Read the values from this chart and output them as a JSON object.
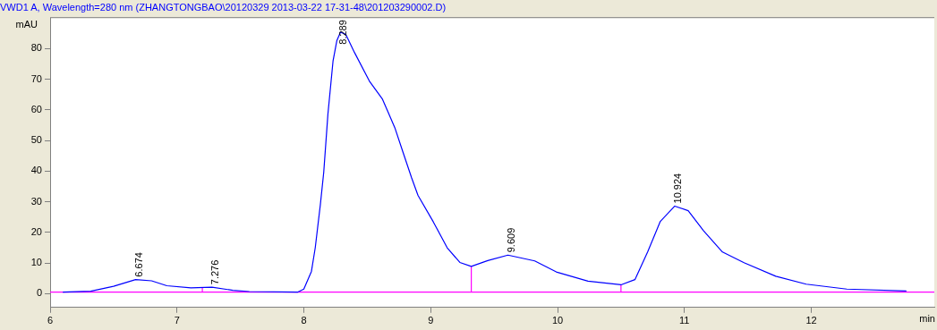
{
  "chart_data": {
    "type": "line",
    "title": "VWD1 A, Wavelength=280 nm (ZHANGTONGBAO\\20120329 2013-03-22 17-31-48\\201203290002.D)",
    "xlabel": "min",
    "ylabel": "mAU",
    "xlim": [
      6,
      12.97
    ],
    "ylim": [
      -4.5,
      90
    ],
    "xticks": [
      6,
      7,
      8,
      9,
      10,
      11,
      12
    ],
    "yticks": [
      0,
      10,
      20,
      30,
      40,
      50,
      60,
      70,
      80
    ],
    "grid": false,
    "legend": false,
    "marker": "none",
    "line_style": "solid",
    "series": [
      {
        "color": "#0000ff",
        "x": [
          6.1,
          6.32,
          6.5,
          6.674,
          6.8,
          6.92,
          7.11,
          7.276,
          7.44,
          7.57,
          7.95,
          8.0,
          8.06,
          8.09,
          8.13,
          8.157,
          8.19,
          8.23,
          8.26,
          8.289,
          8.33,
          8.4,
          8.52,
          8.62,
          8.66,
          8.72,
          8.78,
          8.85,
          8.9,
          9.02,
          9.13,
          9.23,
          9.32,
          9.45,
          9.609,
          9.82,
          9.99,
          10.24,
          10.5,
          10.61,
          10.71,
          10.81,
          10.924,
          11.03,
          11.15,
          11.3,
          11.47,
          11.72,
          11.96,
          12.28,
          12.75
        ],
        "values": [
          0.5,
          0.8,
          2.4,
          4.6,
          4.2,
          2.6,
          1.9,
          2.1,
          1.1,
          0.7,
          0.5,
          1.5,
          7.3,
          15,
          29,
          39.7,
          58.7,
          75.9,
          82.6,
          85.4,
          84.7,
          78.7,
          69.2,
          63.5,
          59.7,
          53.9,
          46.4,
          37.8,
          32.1,
          23.5,
          15,
          10.2,
          8.9,
          10.8,
          12.6,
          10.7,
          7.1,
          4.1,
          2.9,
          4.6,
          13.6,
          23.6,
          28.6,
          27.1,
          20.6,
          13.6,
          10.1,
          5.7,
          3.1,
          1.5,
          0.9
        ]
      },
      {
        "color": "#ff00ff",
        "x": [
          6,
          12.97
        ],
        "values": [
          0.5,
          0.5
        ]
      },
      {
        "color": "#ff00ff",
        "x": [
          7.2,
          7.2
        ],
        "values": [
          0.5,
          2
        ]
      },
      {
        "color": "#ff00ff",
        "x": [
          9.32,
          9.32
        ],
        "values": [
          0.5,
          8.9
        ]
      },
      {
        "color": "#ff00ff",
        "x": [
          10.5,
          10.5
        ],
        "values": [
          0.5,
          2.9
        ]
      }
    ],
    "annotations": [
      {
        "text": "6.674",
        "x": 6.674,
        "y": 4.6
      },
      {
        "text": "7.276",
        "x": 7.276,
        "y": 2.1
      },
      {
        "text": "8.289",
        "x": 8.289,
        "y": 85.4
      },
      {
        "text": "9.609",
        "x": 9.609,
        "y": 12.6
      },
      {
        "text": "10.924",
        "x": 10.924,
        "y": 28.6
      }
    ]
  }
}
